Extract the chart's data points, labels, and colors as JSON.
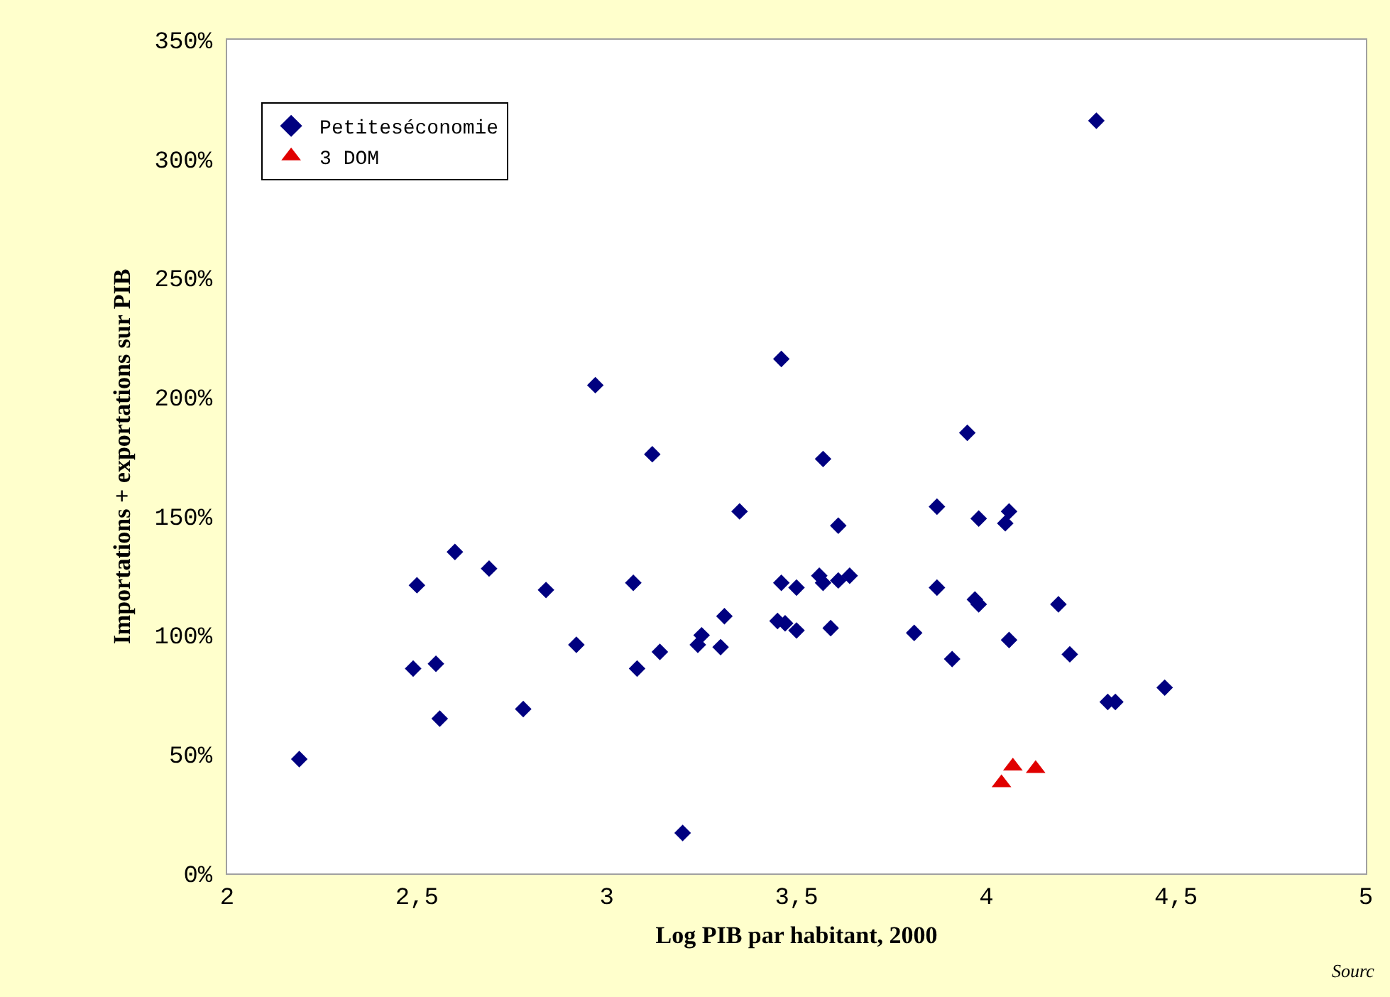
{
  "chart_data": {
    "type": "scatter",
    "xlabel": "Log PIB par habitant, 2000",
    "ylabel": "Importations + exportations sur PIB",
    "xlim": [
      2,
      5
    ],
    "ylim": [
      0,
      350
    ],
    "xticks": [
      2,
      {
        "value": 2.5,
        "label": "2,5"
      },
      3,
      {
        "value": 3.5,
        "label": "3,5"
      },
      4,
      {
        "value": 4.5,
        "label": "4,5"
      },
      5
    ],
    "yticks": [
      {
        "value": 0,
        "label": "0%"
      },
      {
        "value": 50,
        "label": "50%"
      },
      {
        "value": 100,
        "label": "100%"
      },
      {
        "value": 150,
        "label": "150%"
      },
      {
        "value": 200,
        "label": "200%"
      },
      {
        "value": 250,
        "label": "250%"
      },
      {
        "value": 300,
        "label": "300%"
      },
      {
        "value": 350,
        "label": "350%"
      }
    ],
    "grid": false,
    "legend": "top left",
    "annotations": [
      "Sourc"
    ],
    "series": [
      {
        "name": "Petiteséconomie",
        "color": "#000080",
        "marker": "diamond",
        "x": [
          2.19,
          2.49,
          2.5,
          2.55,
          2.56,
          2.6,
          2.69,
          2.78,
          2.84,
          2.92,
          2.97,
          3.07,
          3.08,
          3.12,
          3.14,
          3.2,
          3.24,
          3.25,
          3.3,
          3.31,
          3.35,
          3.45,
          3.46,
          3.46,
          3.47,
          3.5,
          3.5,
          3.56,
          3.57,
          3.57,
          3.59,
          3.61,
          3.61,
          3.64,
          3.81,
          3.87,
          3.87,
          3.91,
          3.95,
          3.97,
          3.98,
          3.98,
          4.05,
          4.06,
          4.06,
          4.19,
          4.22,
          4.29,
          4.32,
          4.34,
          4.47
        ],
        "values": [
          48,
          86,
          121,
          88,
          65,
          135,
          128,
          69,
          119,
          96,
          205,
          122,
          86,
          176,
          93,
          17,
          96,
          100,
          95,
          108,
          152,
          106,
          216,
          122,
          105,
          120,
          102,
          125,
          122,
          174,
          103,
          123,
          146,
          125,
          101,
          120,
          154,
          90,
          185,
          115,
          113,
          149,
          147,
          152,
          98,
          113,
          92,
          316,
          72,
          72,
          78
        ]
      },
      {
        "name": "3 DOM",
        "color": "#e00000",
        "marker": "triangle",
        "x": [
          4.04,
          4.07,
          4.13
        ],
        "values": [
          38,
          45,
          44
        ]
      }
    ]
  }
}
